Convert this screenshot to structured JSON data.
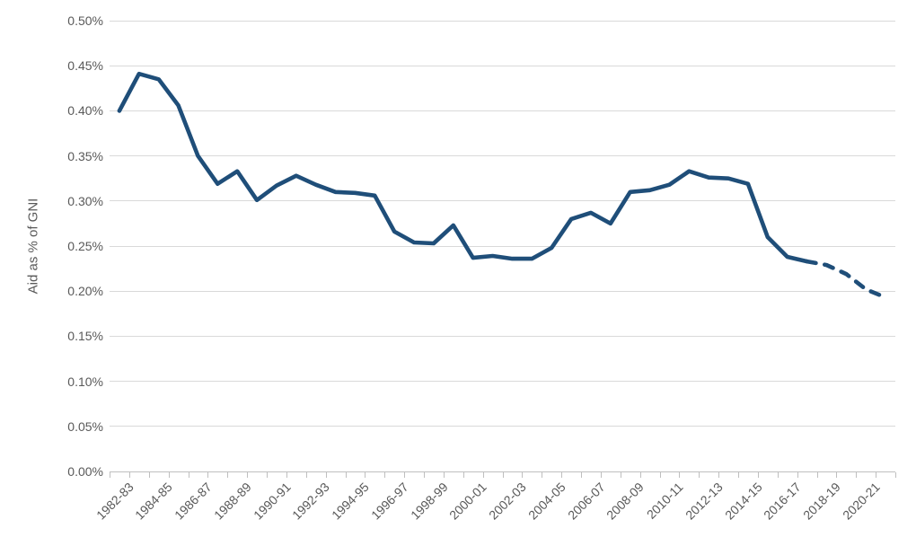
{
  "chart_data": {
    "type": "line",
    "title": "",
    "xlabel": "",
    "ylabel": "Aid as % of GNI",
    "grid": "horizontal",
    "legend": "none",
    "ylim": [
      0,
      0.5
    ],
    "y_tick_step": 0.05,
    "y_tick_labels": [
      "0.00%",
      "0.05%",
      "0.10%",
      "0.15%",
      "0.20%",
      "0.25%",
      "0.30%",
      "0.35%",
      "0.40%",
      "0.45%",
      "0.50%"
    ],
    "x_label_every": 2,
    "categories": [
      "1982-83",
      "1983-84",
      "1984-85",
      "1985-86",
      "1986-87",
      "1987-88",
      "1988-89",
      "1989-90",
      "1990-91",
      "1991-92",
      "1992-93",
      "1993-94",
      "1994-95",
      "1995-96",
      "1996-97",
      "1997-98",
      "1998-99",
      "1999-00",
      "2000-01",
      "2001-02",
      "2002-03",
      "2003-04",
      "2004-05",
      "2005-06",
      "2006-07",
      "2007-08",
      "2008-09",
      "2009-10",
      "2010-11",
      "2011-12",
      "2012-13",
      "2013-14",
      "2014-15",
      "2015-16",
      "2016-17",
      "2017-18",
      "2018-19",
      "2019-20",
      "2020-21",
      "2021-22"
    ],
    "series": [
      {
        "name": "Aid as % of GNI",
        "units": "percent of GNI",
        "values": [
          0.4,
          0.441,
          0.435,
          0.406,
          0.35,
          0.319,
          0.333,
          0.301,
          0.317,
          0.328,
          0.318,
          0.31,
          0.309,
          0.306,
          0.266,
          0.254,
          0.253,
          0.273,
          0.237,
          0.239,
          0.236,
          0.236,
          0.248,
          0.28,
          0.287,
          0.275,
          0.31,
          0.312,
          0.318,
          0.333,
          0.326,
          0.325,
          0.319,
          0.26,
          0.238,
          0.233,
          0.229,
          0.219,
          0.202,
          0.193
        ],
        "forecast_dashed_from_index": 35,
        "color": "#1F4E79"
      }
    ],
    "colors": {
      "line": "#1F4E79",
      "gridline": "#D9D9D9",
      "axis": "#BFBFBF",
      "text": "#595959"
    }
  }
}
